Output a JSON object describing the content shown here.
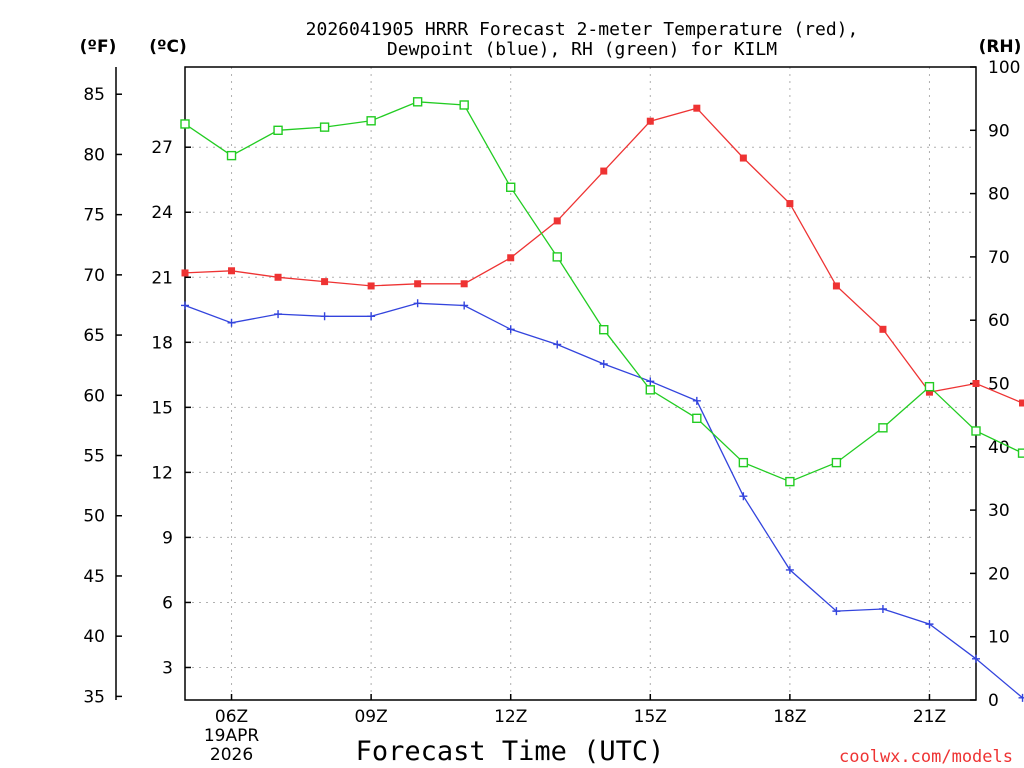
{
  "chart_data": {
    "type": "line",
    "title": "2026041905 HRRR Forecast 2-meter Temperature (red),",
    "title_line2": "Dewpoint (blue), RH (green) for KILM",
    "xlabel": "Forecast Time (UTC)",
    "credit": "coolwx.com/models",
    "unit_labels": {
      "fahrenheit": "(ºF)",
      "celsius": "(ºC)",
      "rh": "(RH)"
    },
    "x_range": [
      5,
      22
    ],
    "x_ticks": [
      {
        "x": 6,
        "label": "06Z",
        "date": "19APR",
        "year": "2026"
      },
      {
        "x": 9,
        "label": "09Z"
      },
      {
        "x": 12,
        "label": "12Z"
      },
      {
        "x": 15,
        "label": "15Z"
      },
      {
        "x": 18,
        "label": "18Z"
      },
      {
        "x": 21,
        "label": "21Z"
      }
    ],
    "celsius_axis": {
      "range": [
        1.5,
        30.7
      ],
      "ticks": [
        3,
        6,
        9,
        12,
        15,
        18,
        21,
        24,
        27
      ]
    },
    "fahrenheit_axis": {
      "range": [
        34.7,
        87.26
      ],
      "ticks": [
        35,
        40,
        45,
        50,
        55,
        60,
        65,
        70,
        75,
        80,
        85
      ]
    },
    "rh_axis": {
      "range": [
        0,
        100
      ],
      "ticks": [
        0,
        10,
        20,
        30,
        40,
        50,
        60,
        70,
        80,
        90,
        100
      ]
    },
    "x": [
      5,
      6,
      7,
      8,
      9,
      10,
      11,
      12,
      13,
      14,
      15,
      16,
      17,
      18,
      19,
      20,
      21,
      22,
      23
    ],
    "series": [
      {
        "name": "Temperature",
        "units": "C",
        "color": "#ee3333",
        "marker": "filled-square",
        "values": [
          21.2,
          21.3,
          21.0,
          20.8,
          20.6,
          20.7,
          20.7,
          21.9,
          23.6,
          25.9,
          28.2,
          28.8,
          26.5,
          24.4,
          20.6,
          18.6,
          15.7,
          16.1,
          15.2
        ]
      },
      {
        "name": "Dewpoint",
        "units": "C",
        "color": "#3344dd",
        "marker": "plus",
        "values": [
          19.7,
          18.9,
          19.3,
          19.2,
          19.2,
          19.8,
          19.7,
          18.6,
          17.9,
          17.0,
          16.2,
          15.3,
          10.9,
          7.5,
          5.6,
          5.7,
          5.0,
          3.4,
          1.6
        ]
      },
      {
        "name": "RH",
        "units": "%",
        "color": "#22cc22",
        "marker": "open-square",
        "values": [
          91,
          86,
          90,
          90.5,
          91.5,
          94.5,
          94,
          81,
          70,
          58.5,
          49,
          44.5,
          37.5,
          34.5,
          37.5,
          43,
          49.5,
          42.5,
          39
        ]
      }
    ]
  }
}
